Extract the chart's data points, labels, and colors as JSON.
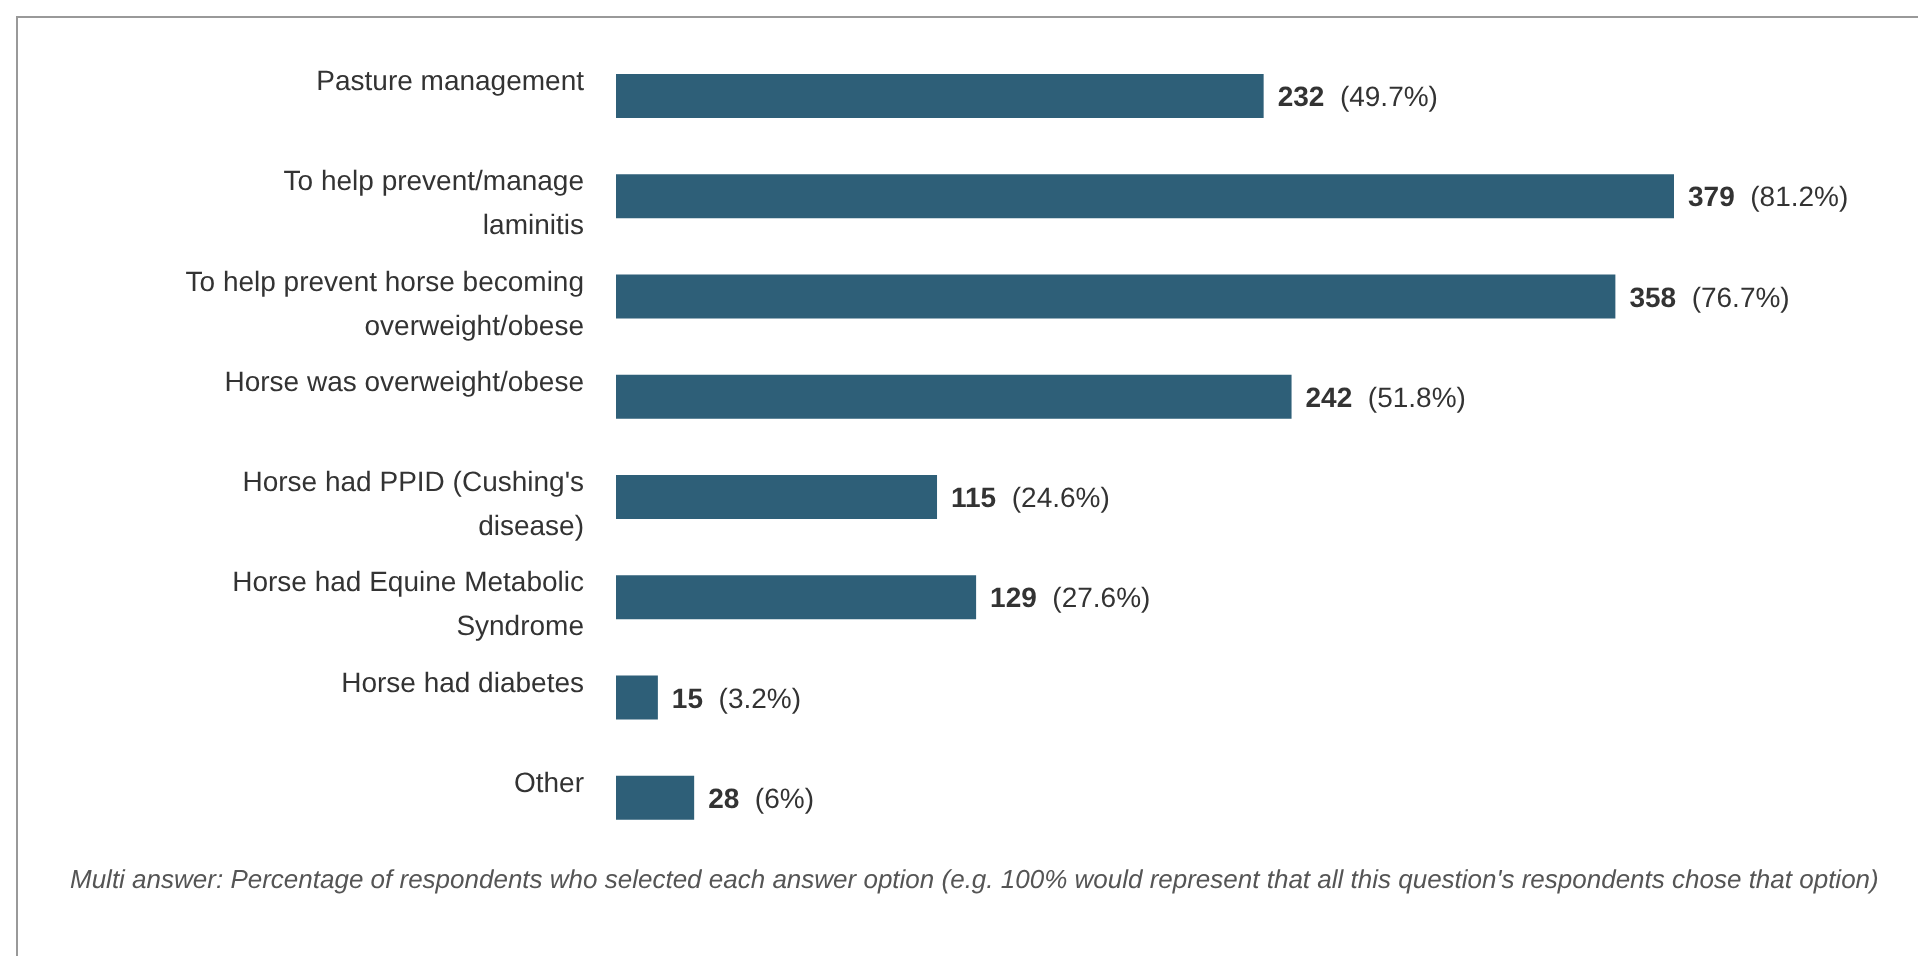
{
  "chart_data": {
    "type": "bar",
    "orientation": "horizontal",
    "categories": [
      "Pasture management",
      "To help prevent/manage laminitis",
      "To help prevent horse becoming overweight/obese",
      "Horse was overweight/obese",
      "Horse had PPID (Cushing's disease)",
      "Horse had Equine Metabolic Syndrome",
      "Horse had diabetes",
      "Other"
    ],
    "values": [
      232,
      379,
      358,
      242,
      115,
      129,
      15,
      28
    ],
    "value_labels": [
      "232 (49.7%)",
      "379 (81.2%)",
      "358 (76.7%)",
      "242 (51.8%)",
      "115 (24.6%)",
      "129 (27.6%)",
      "15 (3.2%)",
      "28 (6%)"
    ],
    "color": "#2e5f78",
    "grid": false,
    "legend": false,
    "annotations": [
      "Multi answer: Percentage of respondents who selected each answer option (e.g. 100% would represent that all this question's respondents chose that option)"
    ]
  }
}
